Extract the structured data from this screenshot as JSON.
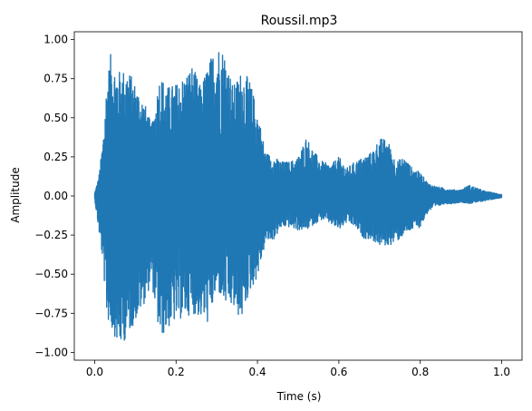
{
  "chart_data": {
    "type": "line",
    "title": "Roussil.mp3",
    "xlabel": "Time (s)",
    "ylabel": "Amplitude",
    "xlim": [
      -0.05,
      1.05
    ],
    "ylim": [
      -1.05,
      1.05
    ],
    "xticks": [
      0.0,
      0.2,
      0.4,
      0.6,
      0.8,
      1.0
    ],
    "xtick_labels": [
      "0.0",
      "0.2",
      "0.4",
      "0.6",
      "0.8",
      "1.0"
    ],
    "yticks": [
      -1.0,
      -0.75,
      -0.5,
      -0.25,
      0.0,
      0.25,
      0.5,
      0.75,
      1.0
    ],
    "ytick_labels": [
      "−1.00",
      "−0.75",
      "−0.50",
      "−0.25",
      "0.00",
      "0.25",
      "0.50",
      "0.75",
      "1.00"
    ],
    "grid": false,
    "series": [
      {
        "color": "#1f77b4",
        "envelope": {
          "x": [
            0.0,
            0.01,
            0.02,
            0.03,
            0.04,
            0.05,
            0.06,
            0.08,
            0.1,
            0.12,
            0.14,
            0.16,
            0.18,
            0.2,
            0.22,
            0.24,
            0.26,
            0.28,
            0.3,
            0.32,
            0.34,
            0.36,
            0.38,
            0.4,
            0.42,
            0.44,
            0.46,
            0.48,
            0.5,
            0.52,
            0.54,
            0.56,
            0.58,
            0.6,
            0.62,
            0.64,
            0.66,
            0.68,
            0.7,
            0.72,
            0.74,
            0.76,
            0.78,
            0.8,
            0.82,
            0.84,
            0.86,
            0.88,
            0.9,
            0.92,
            0.94,
            0.96,
            0.98,
            1.0
          ],
          "upper": [
            0.02,
            0.12,
            0.35,
            0.75,
            0.92,
            0.83,
            0.8,
            0.82,
            0.72,
            0.62,
            0.45,
            0.78,
            0.7,
            0.72,
            0.77,
            0.84,
            0.7,
            0.85,
            0.98,
            0.93,
            0.7,
            0.8,
            0.75,
            0.55,
            0.28,
            0.25,
            0.22,
            0.22,
            0.25,
            0.38,
            0.28,
            0.22,
            0.2,
            0.25,
            0.18,
            0.22,
            0.25,
            0.28,
            0.37,
            0.36,
            0.22,
            0.25,
            0.18,
            0.15,
            0.08,
            0.06,
            0.05,
            0.04,
            0.04,
            0.07,
            0.05,
            0.03,
            0.02,
            0.01
          ],
          "lower": [
            -0.02,
            -0.22,
            -0.42,
            -0.78,
            -0.85,
            -0.9,
            -0.98,
            -0.9,
            -0.8,
            -0.7,
            -0.55,
            -0.92,
            -0.85,
            -0.8,
            -0.78,
            -0.75,
            -0.78,
            -0.82,
            -0.6,
            -0.7,
            -0.72,
            -0.8,
            -0.62,
            -0.52,
            -0.3,
            -0.28,
            -0.2,
            -0.2,
            -0.22,
            -0.22,
            -0.18,
            -0.15,
            -0.18,
            -0.22,
            -0.17,
            -0.2,
            -0.27,
            -0.28,
            -0.32,
            -0.32,
            -0.3,
            -0.25,
            -0.22,
            -0.2,
            -0.1,
            -0.07,
            -0.05,
            -0.05,
            -0.04,
            -0.05,
            -0.04,
            -0.03,
            -0.02,
            -0.01
          ]
        }
      }
    ]
  }
}
